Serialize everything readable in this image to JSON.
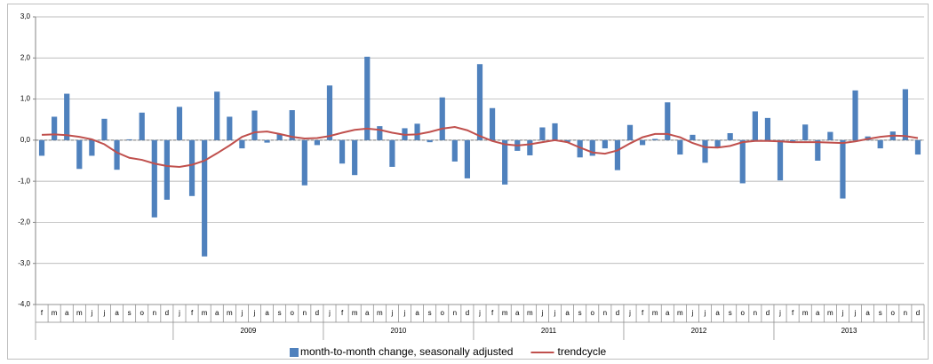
{
  "chart_data": {
    "type": "bar-line",
    "categories": [
      "f",
      "m",
      "a",
      "m",
      "j",
      "j",
      "a",
      "s",
      "o",
      "n",
      "d",
      "j",
      "f",
      "m",
      "a",
      "m",
      "j",
      "j",
      "a",
      "s",
      "o",
      "n",
      "d",
      "j",
      "f",
      "m",
      "a",
      "m",
      "j",
      "j",
      "a",
      "s",
      "o",
      "n",
      "d",
      "j",
      "f",
      "m",
      "a",
      "m",
      "j",
      "j",
      "a",
      "s",
      "o",
      "n",
      "d",
      "j",
      "f",
      "m",
      "a",
      "m",
      "j",
      "j",
      "a",
      "s",
      "o",
      "n",
      "d",
      "j",
      "f",
      "m",
      "a",
      "m",
      "j",
      "j",
      "a",
      "s",
      "o",
      "n",
      "d"
    ],
    "category_groups": [
      {
        "label": null,
        "count": 11
      },
      {
        "label": "2009",
        "count": 12
      },
      {
        "label": "2010",
        "count": 12
      },
      {
        "label": "2011",
        "count": 12
      },
      {
        "label": "2012",
        "count": 12
      },
      {
        "label": "2013",
        "count": 12
      }
    ],
    "series": [
      {
        "name": "month-to-month change, seasonally adjusted",
        "kind": "bar",
        "color": "#4f81bd",
        "values": [
          -0.38,
          0.57,
          1.13,
          -0.7,
          -0.38,
          0.52,
          -0.72,
          0.02,
          0.67,
          -1.88,
          -1.45,
          0.81,
          -1.36,
          -2.83,
          1.18,
          0.57,
          -0.2,
          0.72,
          -0.06,
          0.15,
          0.73,
          -1.1,
          -0.12,
          1.33,
          -0.57,
          -0.85,
          2.03,
          0.34,
          -0.65,
          0.29,
          0.4,
          -0.05,
          1.04,
          -0.52,
          -0.93,
          1.85,
          0.78,
          -1.08,
          -0.26,
          -0.37,
          0.31,
          0.41,
          -0.05,
          -0.42,
          -0.38,
          -0.2,
          -0.73,
          0.37,
          -0.12,
          0.03,
          0.92,
          -0.35,
          0.13,
          -0.55,
          -0.18,
          0.17,
          -1.05,
          0.7,
          0.54,
          -0.98,
          -0.05,
          0.38,
          -0.5,
          0.2,
          -1.42,
          1.21,
          0.09,
          -0.2,
          0.21,
          1.24,
          -0.35
        ]
      },
      {
        "name": "trendcycle",
        "kind": "line",
        "color": "#c0504d",
        "values": [
          0.13,
          0.14,
          0.12,
          0.08,
          0.02,
          -0.1,
          -0.3,
          -0.43,
          -0.48,
          -0.57,
          -0.63,
          -0.65,
          -0.6,
          -0.5,
          -0.32,
          -0.13,
          0.08,
          0.19,
          0.21,
          0.15,
          0.08,
          0.04,
          0.05,
          0.1,
          0.18,
          0.25,
          0.28,
          0.25,
          0.18,
          0.13,
          0.14,
          0.2,
          0.28,
          0.32,
          0.24,
          0.1,
          -0.02,
          -0.1,
          -0.13,
          -0.1,
          -0.05,
          0.0,
          -0.05,
          -0.18,
          -0.3,
          -0.33,
          -0.25,
          -0.08,
          0.07,
          0.15,
          0.15,
          0.07,
          -0.07,
          -0.17,
          -0.18,
          -0.14,
          -0.05,
          -0.02,
          -0.02,
          -0.03,
          -0.05,
          -0.05,
          -0.05,
          -0.06,
          -0.07,
          -0.03,
          0.03,
          0.08,
          0.11,
          0.1,
          0.05
        ]
      }
    ],
    "ylim": [
      -4,
      3
    ],
    "yticks": [
      {
        "value": -4,
        "label": "-4,0"
      },
      {
        "value": -3,
        "label": "-3,0"
      },
      {
        "value": -2,
        "label": "-2,0"
      },
      {
        "value": -1,
        "label": "-1,0"
      },
      {
        "value": 0,
        "label": "0,0"
      },
      {
        "value": 1,
        "label": "1,0"
      },
      {
        "value": 2,
        "label": "2,0"
      },
      {
        "value": 3,
        "label": "3,0"
      }
    ],
    "grid": true,
    "legend": "bottom"
  }
}
